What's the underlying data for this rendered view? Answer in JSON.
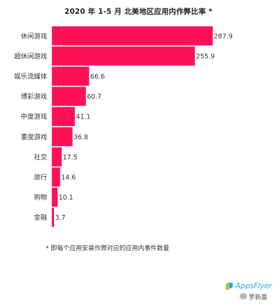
{
  "chart_data": {
    "type": "bar",
    "orientation": "horizontal",
    "title": "2020 年 1-5 月 北美地区应用内作弊比率 *",
    "categories": [
      "休闲游戏",
      "超休闲游戏",
      "娱乐流媒体",
      "博彩游戏",
      "中度游戏",
      "重度游戏",
      "社交",
      "旅行",
      "购物",
      "金融"
    ],
    "values": [
      287.9,
      255.9,
      66.6,
      60.7,
      41.1,
      36.8,
      17.5,
      14.6,
      10.1,
      3.7
    ],
    "data_labels": [
      "287.9",
      "255.9",
      "66.6",
      "60.7",
      "41.1",
      "36.8",
      "17.5",
      "14.6",
      "10.1",
      "3.7"
    ],
    "bar_color": "#ff1158",
    "xlim": [
      0,
      295
    ],
    "grid": false,
    "legend": "none"
  },
  "footnote": "* 即每个应用安装作弊对应的应用内事件数量",
  "logo": {
    "brand": "AppsFlyer",
    "wechat_name": "罗新基",
    "brand_color": "#2ab0e6"
  }
}
